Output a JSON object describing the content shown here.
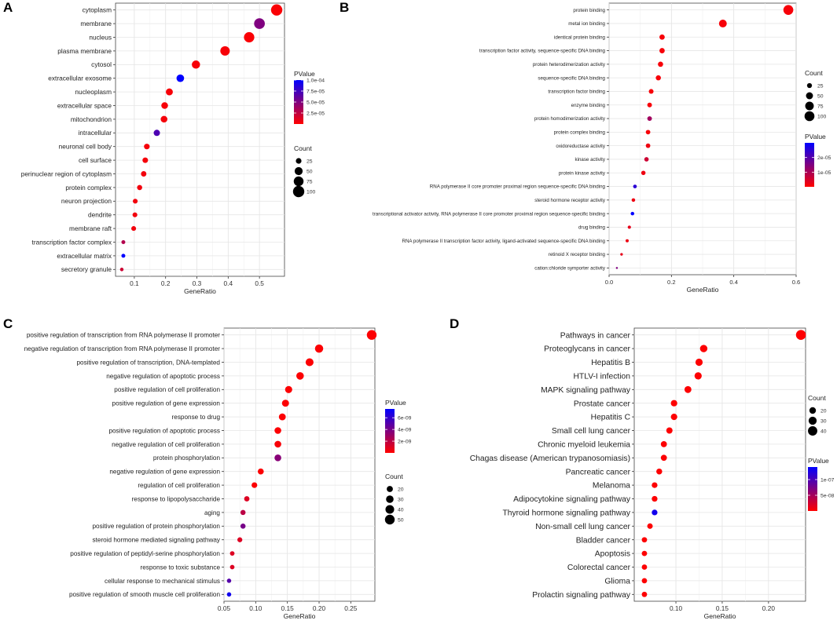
{
  "chart_data": [
    {
      "type": "scatter",
      "panel_label": "A",
      "xlabel": "GeneRatio",
      "xlim": [
        0.04,
        0.58
      ],
      "xticks": [
        0.1,
        0.2,
        0.3,
        0.4,
        0.5
      ],
      "xtick_labels": [
        "0.1",
        "0.2",
        "0.3",
        "0.4",
        "0.5"
      ],
      "categories": [
        "cytoplasm",
        "membrane",
        "nucleus",
        "plasma membrane",
        "cytosol",
        "extracellular exosome",
        "nucleoplasm",
        "extracellular space",
        "mitochondrion",
        "intracellular",
        "neuronal cell body",
        "cell surface",
        "perinuclear region of cytoplasm",
        "protein complex",
        "neuron projection",
        "dendrite",
        "membrane raft",
        "transcription factor complex",
        "extracellular matrix",
        "secretory granule"
      ],
      "x": [
        0.555,
        0.5,
        0.467,
        0.39,
        0.297,
        0.247,
        0.212,
        0.197,
        0.195,
        0.172,
        0.14,
        0.135,
        0.13,
        0.117,
        0.103,
        0.102,
        0.098,
        0.065,
        0.065,
        0.06
      ],
      "count": [
        100,
        90,
        84,
        70,
        53,
        45,
        38,
        35,
        35,
        31,
        25,
        24,
        23,
        21,
        18,
        18,
        18,
        12,
        12,
        10
      ],
      "pvalue": [
        2e-06,
        5e-05,
        2e-06,
        3e-06,
        3e-06,
        0.0001,
        3e-06,
        3e-06,
        4e-06,
        7e-05,
        4e-06,
        4e-06,
        5e-06,
        5e-06,
        5e-06,
        5e-06,
        5e-06,
        3e-05,
        0.0001,
        2e-05
      ],
      "legend": {
        "color_title": "PValue",
        "color_range": [
          0,
          0.0001
        ],
        "color_ticks": [
          0.0001,
          7.5e-05,
          5e-05,
          2.5e-05
        ],
        "color_tick_labels": [
          "1.0e-04",
          "7.5e-05",
          "5.0e-05",
          "2.5e-05"
        ],
        "size_title": "Count",
        "size_values": [
          25,
          50,
          75,
          100
        ],
        "size_labels": [
          "25",
          "50",
          "75",
          "100"
        ],
        "position": "right"
      },
      "grid": true
    },
    {
      "type": "scatter",
      "panel_label": "B",
      "xlabel": "GeneRatio",
      "xlim": [
        0,
        0.6
      ],
      "xticks": [
        0.0,
        0.2,
        0.4,
        0.6
      ],
      "xtick_labels": [
        "0.0",
        "0.2",
        "0.4",
        "0.6"
      ],
      "categories": [
        "protein binding",
        "metal ion binding",
        "identical protein binding",
        "transcription factor activity, sequence-specific DNA binding",
        "protein heterodimerization activity",
        "sequence-specific DNA binding",
        "transcription factor binding",
        "enzyme binding",
        "protein homodimerization activity",
        "protein complex binding",
        "oxidoreductase activity",
        "kinase activity",
        "protein kinase activity",
        "RNA polymerase II core promoter proximal region sequence-specific DNA binding",
        "steroid hormone receptor activity",
        "transcriptional activator activity, RNA polymerase II core promoter proximal region sequence-specific binding",
        "drug binding",
        "RNA polymerase II transcription factor activity, ligand-activated sequence-specific DNA binding",
        "retinoid X receptor binding",
        "cation:chloride symporter activity"
      ],
      "x": [
        0.575,
        0.365,
        0.17,
        0.17,
        0.165,
        0.158,
        0.135,
        0.13,
        0.13,
        0.125,
        0.125,
        0.12,
        0.11,
        0.083,
        0.078,
        0.075,
        0.065,
        0.058,
        0.04,
        0.025
      ],
      "count": [
        100,
        62,
        29,
        29,
        28,
        27,
        23,
        22,
        22,
        21,
        21,
        20,
        19,
        14,
        13,
        13,
        11,
        10,
        7,
        4
      ],
      "pvalue": [
        1e-06,
        1e-06,
        1e-06,
        1e-06,
        1e-06,
        1e-06,
        1e-06,
        1e-06,
        1.1e-05,
        1e-06,
        2e-06,
        6e-06,
        2e-06,
        2.5e-05,
        2e-06,
        3e-05,
        3e-06,
        2e-06,
        3e-06,
        1.5e-05
      ],
      "legend": {
        "color_title": "PValue",
        "color_range": [
          0,
          3e-05
        ],
        "color_ticks": [
          2e-05,
          1e-05
        ],
        "color_tick_labels": [
          "2e-05",
          "1e-05"
        ],
        "size_title": "Count",
        "size_values": [
          25,
          50,
          75,
          100
        ],
        "size_labels": [
          "25",
          "50",
          "75",
          "100"
        ],
        "position": "right"
      },
      "grid": true
    },
    {
      "type": "scatter",
      "panel_label": "C",
      "xlabel": "GeneRatio",
      "xlim": [
        0.05,
        0.288
      ],
      "xticks": [
        0.05,
        0.1,
        0.15,
        0.2,
        0.25
      ],
      "xtick_labels": [
        "0.05",
        "0.10",
        "0.15",
        "0.20",
        "0.25"
      ],
      "categories": [
        "positive regulation of transcription from RNA polymerase II promoter",
        "negative regulation of transcription from RNA polymerase II promoter",
        "positive regulation of transcription, DNA-templated",
        "negative regulation of apoptotic process",
        "positive regulation of cell proliferation",
        "positive regulation of gene expression",
        "response to drug",
        "positive regulation of apoptotic process",
        "negative regulation of cell proliferation",
        "protein phosphorylation",
        "negative regulation of gene expression",
        "regulation of cell proliferation",
        "response to lipopolysaccharide",
        "aging",
        "positive regulation of protein phosphorylation",
        "steroid hormone mediated signaling pathway",
        "positive regulation of peptidyl-serine phosphorylation",
        "response to toxic substance",
        "cellular response to mechanical stimulus",
        "positive regulation of smooth muscle cell proliferation"
      ],
      "x": [
        0.283,
        0.2,
        0.185,
        0.17,
        0.152,
        0.147,
        0.142,
        0.135,
        0.135,
        0.135,
        0.108,
        0.098,
        0.086,
        0.08,
        0.08,
        0.075,
        0.063,
        0.063,
        0.058,
        0.058
      ],
      "count": [
        50,
        36,
        33,
        30,
        27,
        26,
        25,
        24,
        24,
        24,
        19,
        17,
        15,
        14,
        14,
        13,
        11,
        11,
        10,
        10
      ],
      "pvalue": [
        1e-10,
        1e-10,
        1e-10,
        1e-10,
        1e-10,
        1e-10,
        1e-10,
        1e-10,
        2e-10,
        3.5e-09,
        1e-10,
        1e-10,
        1e-09,
        2e-09,
        4e-09,
        1e-09,
        1e-09,
        1e-09,
        5e-09,
        7e-09
      ],
      "legend": {
        "color_title": "PValue",
        "color_range": [
          0,
          7.5e-09
        ],
        "color_ticks": [
          6e-09,
          4e-09,
          2e-09
        ],
        "color_tick_labels": [
          "6e-09",
          "4e-09",
          "2e-09"
        ],
        "size_title": "Count",
        "size_values": [
          20,
          30,
          40,
          50
        ],
        "size_labels": [
          "20",
          "30",
          "40",
          "50"
        ],
        "position": "right"
      },
      "grid": true
    },
    {
      "type": "scatter",
      "panel_label": "D",
      "xlabel": "GeneRatio",
      "xlim": [
        0.055,
        0.24
      ],
      "xticks": [
        0.1,
        0.15,
        0.2
      ],
      "xtick_labels": [
        "0.10",
        "0.15",
        "0.20"
      ],
      "categories": [
        "Pathways in cancer",
        "Proteoglycans in cancer",
        "Hepatitis B",
        "HTLV-I infection",
        "MAPK signaling pathway",
        "Prostate cancer",
        "Hepatitis C",
        "Small cell lung cancer",
        "Chronic myeloid leukemia",
        "Chagas disease (American trypanosomiasis)",
        "Pancreatic cancer",
        "Melanoma",
        "Adipocytokine signaling pathway",
        "Thyroid hormone signaling pathway",
        "Non-small cell lung cancer",
        "Bladder cancer",
        "Apoptosis",
        "Colorectal cancer",
        "Glioma",
        "Prolactin signaling pathway"
      ],
      "x": [
        0.235,
        0.13,
        0.125,
        0.124,
        0.113,
        0.098,
        0.098,
        0.093,
        0.087,
        0.087,
        0.082,
        0.077,
        0.077,
        0.077,
        0.072,
        0.066,
        0.066,
        0.066,
        0.066,
        0.066
      ],
      "count": [
        45,
        25,
        24,
        24,
        22,
        19,
        19,
        18,
        17,
        17,
        16,
        15,
        15,
        15,
        14,
        13,
        13,
        13,
        13,
        13
      ],
      "pvalue": [
        1e-09,
        1e-09,
        1e-09,
        1e-09,
        1e-09,
        1e-09,
        1e-09,
        1e-09,
        1e-09,
        1e-09,
        1e-09,
        1e-09,
        1e-09,
        1.3e-07,
        1e-09,
        1e-09,
        1e-09,
        1e-09,
        1e-09,
        1e-09
      ],
      "legend": {
        "color_title": "PValue",
        "color_range": [
          0,
          1.4e-07
        ],
        "color_ticks": [
          1e-07,
          5e-08
        ],
        "color_tick_labels": [
          "1e-07",
          "5e-08"
        ],
        "size_title": "Count",
        "size_values": [
          20,
          30,
          40
        ],
        "size_labels": [
          "20",
          "30",
          "40"
        ],
        "position": "right"
      },
      "grid": true
    }
  ]
}
